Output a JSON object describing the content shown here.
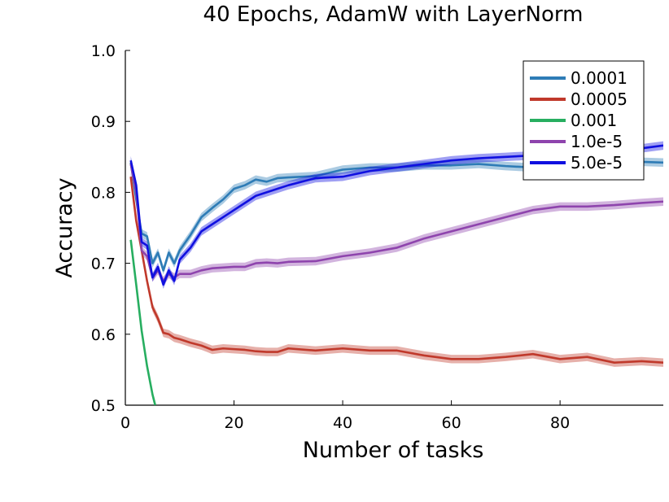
{
  "chart_data": {
    "type": "line",
    "title": "40 Epochs, AdamW with LayerNorm",
    "xlabel": "Number of tasks",
    "ylabel": "Accuracy",
    "xlim": [
      0,
      99
    ],
    "ylim": [
      0.5,
      1.0
    ],
    "xticks": [
      0,
      20,
      40,
      60,
      80
    ],
    "yticks": [
      0.5,
      0.6,
      0.7,
      0.8,
      0.9,
      1.0
    ],
    "xtick_labels": [
      "0",
      "20",
      "40",
      "60",
      "80"
    ],
    "ytick_labels": [
      "0.5",
      "0.6",
      "0.7",
      "0.8",
      "0.9",
      "1.0"
    ],
    "grid": false,
    "legend_position": "top-right",
    "series": [
      {
        "name": "0.0001",
        "color": "#2e7cb6",
        "x": [
          1,
          2,
          3,
          4,
          5,
          6,
          7,
          8,
          9,
          10,
          12,
          14,
          16,
          18,
          20,
          22,
          24,
          26,
          28,
          30,
          35,
          40,
          45,
          50,
          55,
          60,
          65,
          70,
          75,
          80,
          85,
          90,
          95,
          99
        ],
        "y": [
          0.842,
          0.79,
          0.742,
          0.738,
          0.7,
          0.715,
          0.69,
          0.715,
          0.7,
          0.718,
          0.74,
          0.765,
          0.778,
          0.79,
          0.805,
          0.81,
          0.818,
          0.815,
          0.82,
          0.821,
          0.823,
          0.832,
          0.835,
          0.835,
          0.838,
          0.838,
          0.84,
          0.837,
          0.835,
          0.84,
          0.843,
          0.845,
          0.843,
          0.842
        ]
      },
      {
        "name": "0.0005",
        "color": "#c0392b",
        "x": [
          1,
          2,
          3,
          4,
          5,
          6,
          7,
          8,
          9,
          10,
          12,
          14,
          16,
          18,
          20,
          22,
          24,
          26,
          28,
          30,
          35,
          40,
          45,
          50,
          55,
          60,
          65,
          70,
          75,
          80,
          85,
          90,
          95,
          99
        ],
        "y": [
          0.822,
          0.76,
          0.718,
          0.675,
          0.638,
          0.622,
          0.602,
          0.6,
          0.595,
          0.593,
          0.588,
          0.584,
          0.578,
          0.58,
          0.579,
          0.578,
          0.576,
          0.575,
          0.575,
          0.58,
          0.577,
          0.58,
          0.577,
          0.577,
          0.57,
          0.565,
          0.565,
          0.568,
          0.572,
          0.565,
          0.568,
          0.56,
          0.562,
          0.56
        ]
      },
      {
        "name": "0.001",
        "color": "#27ae60",
        "x": [
          1,
          2,
          3,
          4,
          5,
          5.5
        ],
        "y": [
          0.733,
          0.67,
          0.605,
          0.555,
          0.515,
          0.5
        ]
      },
      {
        "name": "1.0e-5",
        "color": "#8e44ad",
        "x": [
          1,
          2,
          3,
          4,
          5,
          6,
          7,
          8,
          9,
          10,
          12,
          14,
          16,
          18,
          20,
          22,
          24,
          26,
          28,
          30,
          35,
          40,
          45,
          50,
          55,
          60,
          65,
          70,
          75,
          80,
          85,
          90,
          95,
          99
        ],
        "y": [
          0.84,
          0.8,
          0.718,
          0.71,
          0.68,
          0.69,
          0.675,
          0.685,
          0.68,
          0.685,
          0.685,
          0.69,
          0.693,
          0.694,
          0.695,
          0.695,
          0.7,
          0.701,
          0.7,
          0.702,
          0.703,
          0.71,
          0.715,
          0.722,
          0.735,
          0.745,
          0.755,
          0.765,
          0.775,
          0.78,
          0.78,
          0.782,
          0.785,
          0.787
        ]
      },
      {
        "name": "5.0e-5",
        "color": "#1010e0",
        "x": [
          1,
          2,
          3,
          4,
          5,
          6,
          7,
          8,
          9,
          10,
          12,
          14,
          16,
          18,
          20,
          22,
          24,
          26,
          28,
          30,
          35,
          40,
          45,
          50,
          55,
          60,
          65,
          70,
          75,
          80,
          85,
          90,
          95,
          99
        ],
        "y": [
          0.845,
          0.81,
          0.73,
          0.725,
          0.68,
          0.695,
          0.67,
          0.69,
          0.675,
          0.705,
          0.722,
          0.745,
          0.755,
          0.765,
          0.775,
          0.785,
          0.795,
          0.8,
          0.805,
          0.81,
          0.82,
          0.822,
          0.83,
          0.835,
          0.84,
          0.845,
          0.848,
          0.85,
          0.852,
          0.855,
          0.858,
          0.86,
          0.862,
          0.866
        ]
      }
    ]
  }
}
